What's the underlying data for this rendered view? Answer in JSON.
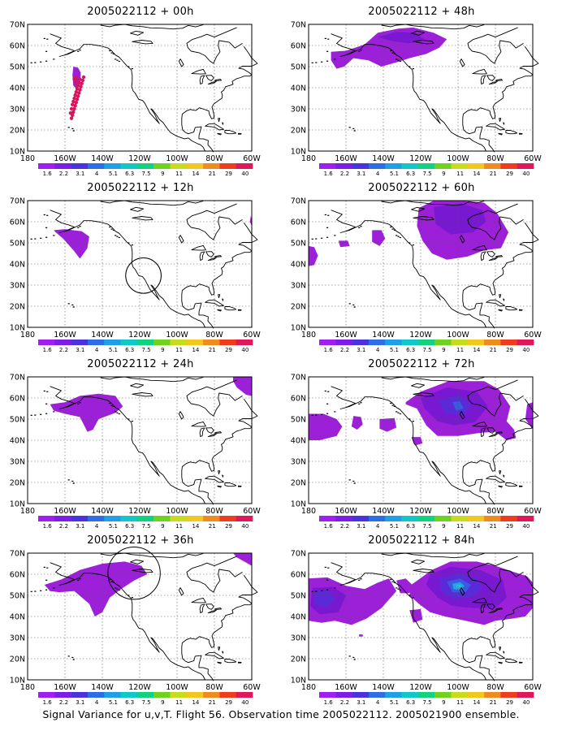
{
  "lon_labels": [
    "180",
    "160W",
    "140W",
    "120W",
    "100W",
    "80W",
    "60W"
  ],
  "lat_labels": [
    "70N",
    "60N",
    "50N",
    "40N",
    "30N",
    "20N",
    "10N"
  ],
  "colorbar": {
    "labels": [
      "1.6",
      "2.2",
      "3.1",
      "4",
      "5.1",
      "6.3",
      "7.5",
      "9",
      "11",
      "14",
      "21",
      "29",
      "40"
    ],
    "colors": [
      "#a01ff0",
      "#7d1ee8",
      "#4a32dc",
      "#2d6ee6",
      "#1ea0e6",
      "#10c8c8",
      "#12d27f",
      "#6ed21e",
      "#c8dc1e",
      "#f0c81e",
      "#f08c1e",
      "#f03c1e",
      "#e0185a"
    ]
  },
  "colors": {
    "level1_purple": "#9b20d8",
    "level2_violet": "#7818d0",
    "level3_indigo": "#5a2ad8",
    "level4_blue": "#3a5ae0",
    "level5_lightblue": "#2aa0e8",
    "level6_cyan": "#20c8d8",
    "track_points": "#d8145a"
  },
  "panels": [
    {
      "title": "2005022112 + 00h"
    },
    {
      "title": "2005022112 + 48h"
    },
    {
      "title": "2005022112 + 12h"
    },
    {
      "title": "2005022112 + 60h"
    },
    {
      "title": "2005022112 + 24h"
    },
    {
      "title": "2005022112 + 72h"
    },
    {
      "title": "2005022112 + 36h"
    },
    {
      "title": "2005022112 + 84h"
    }
  ],
  "caption": "Signal Variance for u,v,T. Flight 56. Observation time 2005022112. 2005021900 ensemble."
}
